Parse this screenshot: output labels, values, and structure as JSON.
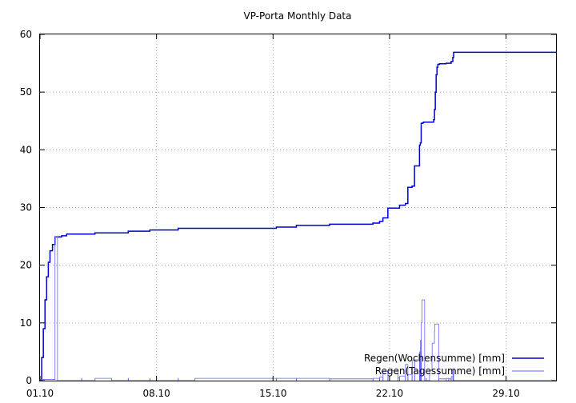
{
  "chart_data": {
    "type": "line",
    "title": "VP-Porta Monthly Data",
    "xlabel": "",
    "ylabel": "",
    "xlim": [
      1.0,
      32.0
    ],
    "ylim": [
      0,
      60
    ],
    "grid": true,
    "legend_position": "bottom-right",
    "x_ticks": [
      {
        "value": 1,
        "label": "01.10"
      },
      {
        "value": 8,
        "label": "08.10"
      },
      {
        "value": 15,
        "label": "15.10"
      },
      {
        "value": 22,
        "label": "22.10"
      },
      {
        "value": 29,
        "label": "29.10"
      }
    ],
    "y_ticks": [
      0,
      10,
      20,
      30,
      40,
      50,
      60
    ],
    "series": [
      {
        "name": "Regen(Wochensumme) [mm]",
        "color": "#0000cc",
        "style": "step",
        "x": [
          1.05,
          1.1,
          1.2,
          1.3,
          1.4,
          1.5,
          1.6,
          1.75,
          1.9,
          2.05,
          2.3,
          2.6,
          4.3,
          6.3,
          7.6,
          9.3,
          15.2,
          16.4,
          18.4,
          21.0,
          21.4,
          21.6,
          21.9,
          22.5,
          22.6,
          22.95,
          23.1,
          23.35,
          23.5,
          23.8,
          23.85,
          23.9,
          23.95,
          24.0,
          24.05,
          24.65,
          24.7,
          24.75,
          24.8,
          24.85,
          24.9,
          25.0,
          25.4,
          25.7,
          25.8,
          25.85,
          26.0,
          32.0
        ],
        "values": [
          0.2,
          4.0,
          9.0,
          14.0,
          18.0,
          20.5,
          22.5,
          23.6,
          24.9,
          24.9,
          25.1,
          25.4,
          25.6,
          25.9,
          26.1,
          26.4,
          26.6,
          26.9,
          27.1,
          27.3,
          27.6,
          28.2,
          29.9,
          29.9,
          30.4,
          30.7,
          33.5,
          33.7,
          37.2,
          40.8,
          41.2,
          44.6,
          44.6,
          44.7,
          44.8,
          45.2,
          47.0,
          50.0,
          53.0,
          54.3,
          54.8,
          54.9,
          55.0,
          55.3,
          56.0,
          56.9,
          56.9,
          56.9
        ]
      },
      {
        "name": "Regen(Tagessumme) [mm]",
        "color": "#6464ff",
        "style": "step",
        "x": [
          1.0,
          1.05,
          1.9,
          2.05,
          2.1,
          3.5,
          3.51,
          4.3,
          4.31,
          5.3,
          5.31,
          6.3,
          6.31,
          7.6,
          7.61,
          9.3,
          9.31,
          10.3,
          10.31,
          15.2,
          15.21,
          16.4,
          16.41,
          18.4,
          18.41,
          21.0,
          21.01,
          21.4,
          21.41,
          21.6,
          21.61,
          21.9,
          21.91,
          22.5,
          22.51,
          22.6,
          22.61,
          22.95,
          22.96,
          23.1,
          23.11,
          23.35,
          23.36,
          23.5,
          23.51,
          23.8,
          23.81,
          23.85,
          23.86,
          23.9,
          23.91,
          23.95,
          23.96,
          24.0,
          24.01,
          24.1,
          24.11,
          24.2,
          24.21,
          24.4,
          24.41,
          24.55,
          24.56,
          24.7,
          24.71,
          24.85,
          24.86,
          24.95,
          24.96,
          25.4,
          25.41,
          25.55,
          25.56,
          25.7,
          25.71,
          25.8,
          25.81,
          25.85,
          25.86,
          26.0,
          26.01,
          32.0
        ],
        "values": [
          0.0,
          0.2,
          24.9,
          0.0,
          0.0,
          0.4,
          0.0,
          0.0,
          0.4,
          0.0,
          0.0,
          0.4,
          0.0,
          0.4,
          0.0,
          0.4,
          0.0,
          0.0,
          0.4,
          0.0,
          0.4,
          0.0,
          0.4,
          0.0,
          0.3,
          0.0,
          0.4,
          0.0,
          0.6,
          0.0,
          1.6,
          0.0,
          1.7,
          0.0,
          0.5,
          0.0,
          0.8,
          0.0,
          2.8,
          0.0,
          1.0,
          0.0,
          3.5,
          0.0,
          3.6,
          0.0,
          5.0,
          0.0,
          7.0,
          0.0,
          10.0,
          14.0,
          14.0,
          14.0,
          14.0,
          14.0,
          0.0,
          0.4,
          0.0,
          0.8,
          1.8,
          3.5,
          6.5,
          8.5,
          9.8,
          9.8,
          9.8,
          0.0,
          0.3,
          0.0,
          0.4,
          0.0,
          0.3,
          0.0,
          0.7,
          0.0,
          1.9,
          0.0,
          0.0,
          0.0,
          0.0,
          0.0
        ]
      }
    ]
  }
}
